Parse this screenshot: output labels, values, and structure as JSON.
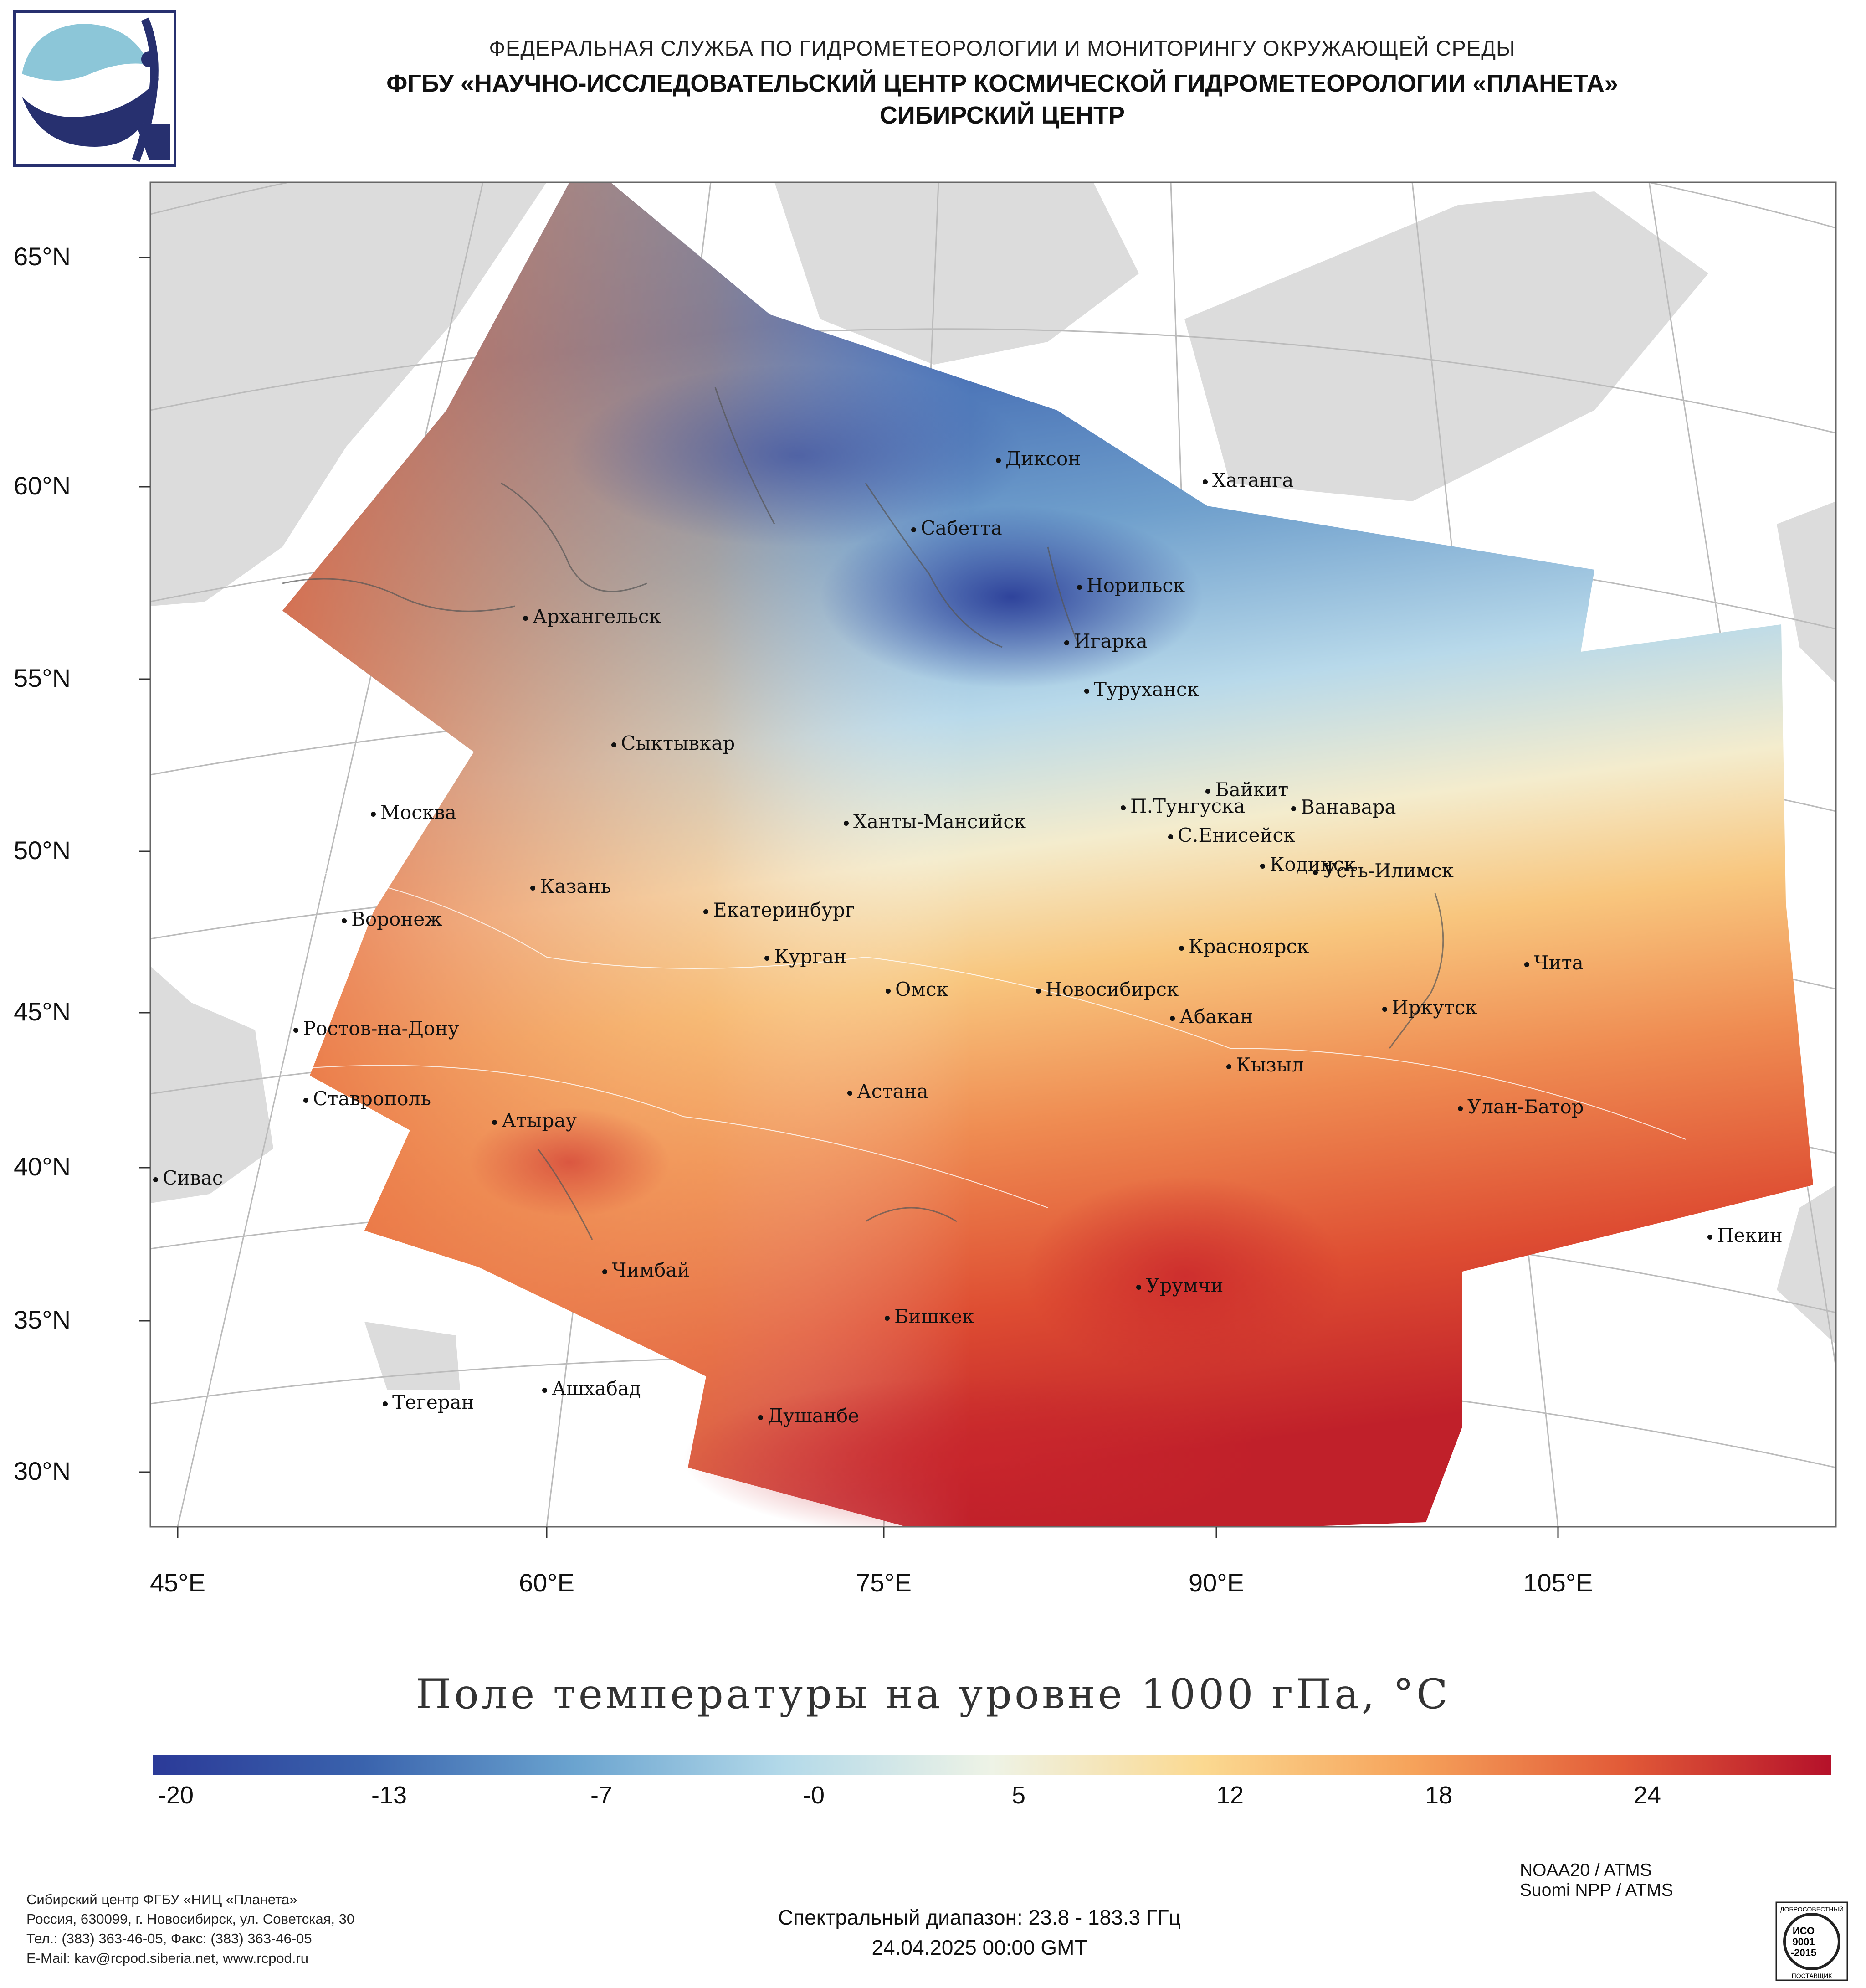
{
  "header": {
    "line1": "ФЕДЕРАЛЬНАЯ СЛУЖБА ПО ГИДРОМЕТЕОРОЛОГИИ И МОНИТОРИНГУ ОКРУЖАЮЩЕЙ СРЕДЫ",
    "line2": "ФГБУ «НАУЧНО-ИССЛЕДОВАТЕЛЬСКИЙ ЦЕНТР КОСМИЧЕСКОЙ ГИДРОМЕТЕОРОЛОГИИ «ПЛАНЕТА»",
    "line3": "СИБИРСКИЙ ЦЕНТР"
  },
  "map": {
    "lat_labels": [
      "65°N",
      "60°N",
      "55°N",
      "50°N",
      "45°N",
      "40°N",
      "35°N",
      "30°N"
    ],
    "lon_labels": [
      "45°E",
      "60°E",
      "75°E",
      "90°E",
      "105°E"
    ],
    "cities": [
      {
        "name": "Диксон"
      },
      {
        "name": "Хатанга"
      },
      {
        "name": "Сабетта"
      },
      {
        "name": "Норильск"
      },
      {
        "name": "Архангельск"
      },
      {
        "name": "Игарка"
      },
      {
        "name": "Туруханск"
      },
      {
        "name": "Сыктывкар"
      },
      {
        "name": "Байкит"
      },
      {
        "name": "П.Тунгуска"
      },
      {
        "name": "Ванавара"
      },
      {
        "name": "Москва"
      },
      {
        "name": "Ханты-Мансийск"
      },
      {
        "name": "С.Енисейск"
      },
      {
        "name": "Кодинск"
      },
      {
        "name": "Усть-Илимск"
      },
      {
        "name": "Казань"
      },
      {
        "name": "Екатеринбург"
      },
      {
        "name": "Воронеж"
      },
      {
        "name": "Красноярск"
      },
      {
        "name": "Курган"
      },
      {
        "name": "Чита"
      },
      {
        "name": "Омск"
      },
      {
        "name": "Новосибирск"
      },
      {
        "name": "Иркутск"
      },
      {
        "name": "Ростов-на-Дону"
      },
      {
        "name": "Абакан"
      },
      {
        "name": "Кызыл"
      },
      {
        "name": "Ставрополь"
      },
      {
        "name": "Астана"
      },
      {
        "name": "Улан-Батор"
      },
      {
        "name": "Атырау"
      },
      {
        "name": "Сивас"
      },
      {
        "name": "Пекин"
      },
      {
        "name": "Чимбай"
      },
      {
        "name": "Урумчи"
      },
      {
        "name": "Бишкек"
      },
      {
        "name": "Ашхабад"
      },
      {
        "name": "Тегеран"
      },
      {
        "name": "Душанбе"
      }
    ]
  },
  "colorbar": {
    "title": "Поле температуры на уровне 1000 гПа, °C",
    "ticks": [
      "-20",
      "-13",
      "-7",
      "-0",
      "5",
      "12",
      "18",
      "24"
    ],
    "colors": [
      "#2b3a98",
      "#3a63ad",
      "#6aa3cf",
      "#b3d9e9",
      "#eef3e6",
      "#fbd991",
      "#f6a35b",
      "#e25b38",
      "#b5112a"
    ]
  },
  "satellites": {
    "line1": "NOAA20 / ATMS",
    "line2": "Suomi NPP / ATMS"
  },
  "footer": {
    "org": "Сибирский центр ФГБУ «НИЦ «Планета»",
    "address": "Россия, 630099, г. Новосибирск, ул. Советская, 30",
    "phone": "Тел.: (383) 363-46-05, Факс: (383) 363-46-05",
    "email": "E-Mail: kav@rcpod.siberia.net, www.rcpod.ru",
    "spectral": "Спектральный диапазон: 23.8 - 183.3 ГГц",
    "datetime": "24.04.2025 00:00 GMT"
  },
  "iso_badge": {
    "top": "ДОБРОСОВЕСТНЫЙ",
    "mid1": "ИСО",
    "mid2": "9001",
    "mid3": "-2015",
    "bottom": "ПОСТАВЩИК"
  }
}
